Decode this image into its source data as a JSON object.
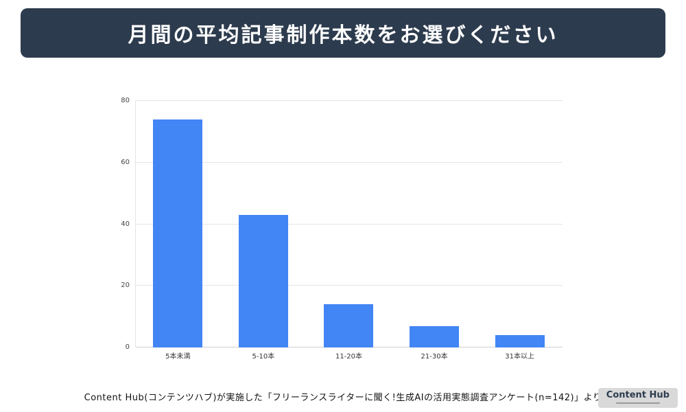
{
  "header": {
    "title": "月間の平均記事制作本数をお選びください"
  },
  "chart_data": {
    "type": "bar",
    "categories": [
      "5本未満",
      "5-10本",
      "11-20本",
      "21-30本",
      "31本以上"
    ],
    "values": [
      74,
      43,
      14,
      7,
      4
    ],
    "title": "",
    "xlabel": "",
    "ylabel": "",
    "ylim": [
      0,
      80
    ],
    "yticks": [
      0,
      20,
      40,
      60,
      80
    ],
    "grid": true,
    "legend": false,
    "bar_color": "#4285f4"
  },
  "footer": {
    "source_text": "Content Hub(コンテンツハブ)が実施した「フリーランスライターに聞く!生成AIの活用実態調査アンケート(n=142)」より",
    "logo_text": "Content Hub"
  },
  "colors": {
    "header_bg": "#2d3b4e",
    "bar": "#4285f4",
    "gridline": "#e4e4e4"
  }
}
